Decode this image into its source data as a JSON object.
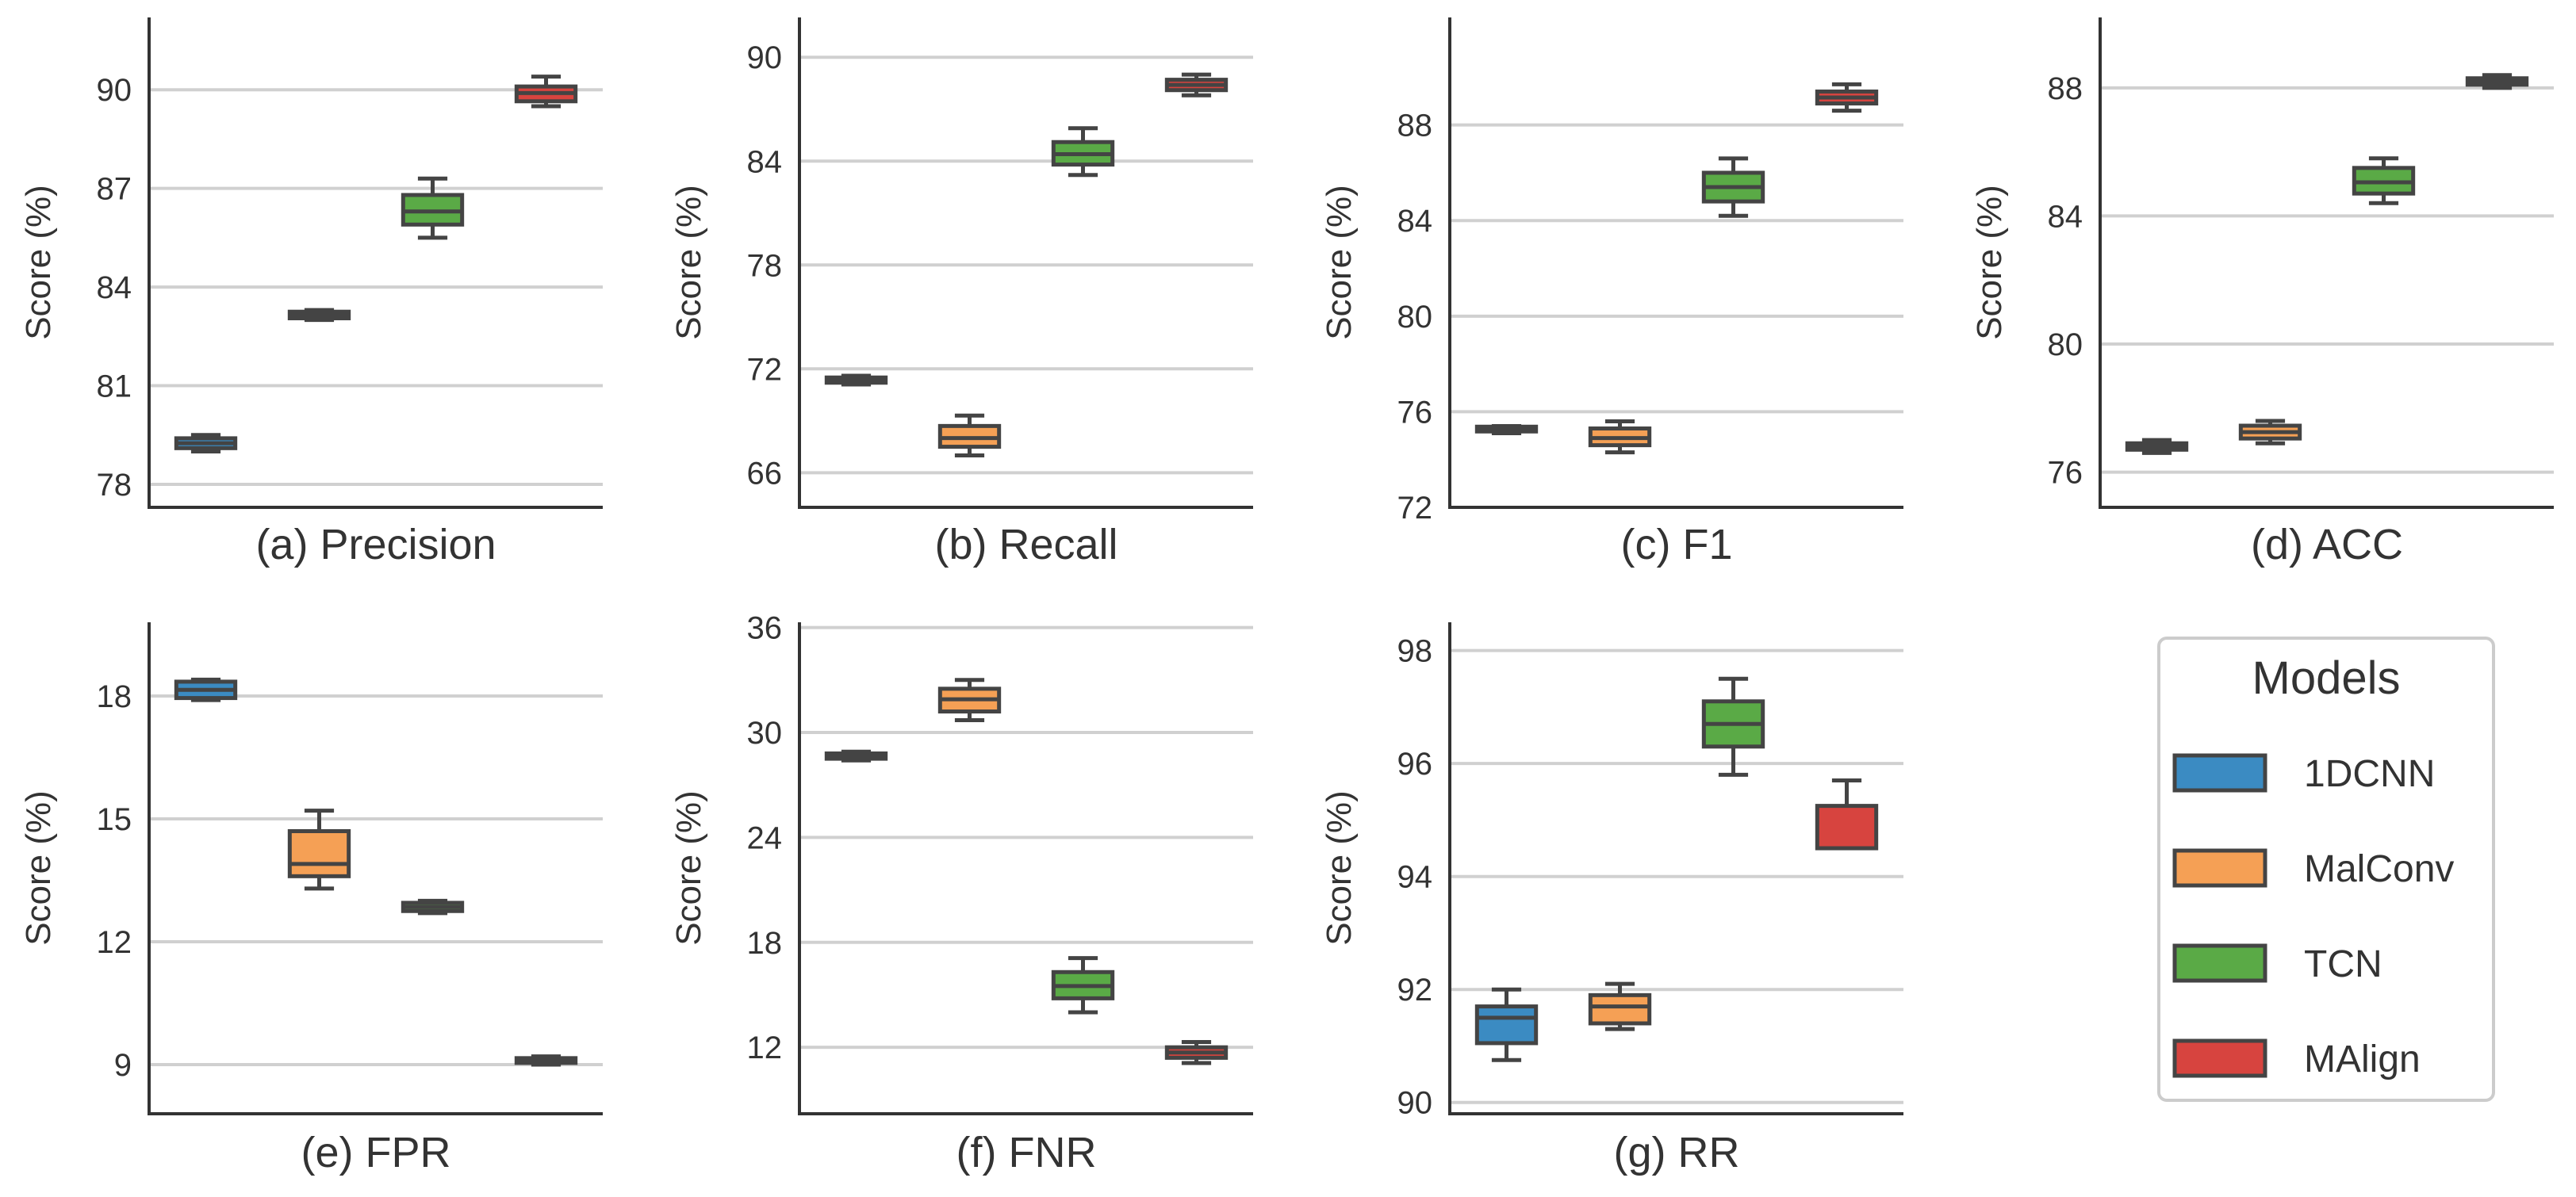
{
  "legend": {
    "title": "Models",
    "entries": [
      {
        "name": "1DCNN",
        "color": "#3b8bc2"
      },
      {
        "name": "MalConv",
        "color": "#f5a055"
      },
      {
        "name": "TCN",
        "color": "#5aaa46"
      },
      {
        "name": "MAlign",
        "color": "#d7443f"
      }
    ]
  },
  "colors": {
    "edge": "#444444",
    "grid": "#d0d0d0",
    "axis": "#333333"
  },
  "chart_data": [
    {
      "type": "box",
      "title": "(a) Precision",
      "ylabel": "Score (%)",
      "ylim": [
        77.3,
        92.2
      ],
      "yticks": [
        78,
        81,
        84,
        87,
        90
      ],
      "boxes": [
        {
          "model": "1DCNN",
          "min": 79.0,
          "q1": 79.1,
          "median": 79.25,
          "q3": 79.4,
          "max": 79.5
        },
        {
          "model": "MalConv",
          "min": 83.0,
          "q1": 83.05,
          "median": 83.15,
          "q3": 83.25,
          "max": 83.3
        },
        {
          "model": "TCN",
          "min": 85.5,
          "q1": 85.9,
          "median": 86.3,
          "q3": 86.8,
          "max": 87.3
        },
        {
          "model": "MAlign",
          "min": 89.5,
          "q1": 89.65,
          "median": 89.9,
          "q3": 90.1,
          "max": 90.4
        }
      ]
    },
    {
      "type": "box",
      "title": "(b) Recall",
      "ylabel": "Score (%)",
      "ylim": [
        64.0,
        92.3
      ],
      "yticks": [
        66,
        72,
        78,
        84,
        90
      ],
      "boxes": [
        {
          "model": "1DCNN",
          "min": 71.1,
          "q1": 71.2,
          "median": 71.35,
          "q3": 71.5,
          "max": 71.6
        },
        {
          "model": "MalConv",
          "min": 67.0,
          "q1": 67.5,
          "median": 68.0,
          "q3": 68.7,
          "max": 69.3
        },
        {
          "model": "TCN",
          "min": 83.2,
          "q1": 83.8,
          "median": 84.4,
          "q3": 85.1,
          "max": 85.9
        },
        {
          "model": "MAlign",
          "min": 87.8,
          "q1": 88.1,
          "median": 88.4,
          "q3": 88.7,
          "max": 89.0
        }
      ]
    },
    {
      "type": "box",
      "title": "(c) F1",
      "ylabel": "Score (%)",
      "ylim": [
        72.0,
        92.5
      ],
      "yticks": [
        72,
        76,
        80,
        84,
        88
      ],
      "boxes": [
        {
          "model": "1DCNN",
          "min": 75.1,
          "q1": 75.2,
          "median": 75.3,
          "q3": 75.35,
          "max": 75.4
        },
        {
          "model": "MalConv",
          "min": 74.3,
          "q1": 74.6,
          "median": 74.9,
          "q3": 75.3,
          "max": 75.6
        },
        {
          "model": "TCN",
          "min": 84.2,
          "q1": 84.8,
          "median": 85.4,
          "q3": 86.0,
          "max": 86.6
        },
        {
          "model": "MAlign",
          "min": 88.6,
          "q1": 88.9,
          "median": 89.15,
          "q3": 89.4,
          "max": 89.7
        }
      ]
    },
    {
      "type": "box",
      "title": "(d) ACC",
      "ylabel": "Score (%)",
      "ylim": [
        74.9,
        90.2
      ],
      "yticks": [
        76,
        80,
        84,
        88
      ],
      "boxes": [
        {
          "model": "1DCNN",
          "min": 76.6,
          "q1": 76.7,
          "median": 76.8,
          "q3": 76.9,
          "max": 77.0
        },
        {
          "model": "MalConv",
          "min": 76.9,
          "q1": 77.05,
          "median": 77.25,
          "q3": 77.45,
          "max": 77.6
        },
        {
          "model": "TCN",
          "min": 84.4,
          "q1": 84.7,
          "median": 85.05,
          "q3": 85.5,
          "max": 85.8
        },
        {
          "model": "MAlign",
          "min": 88.0,
          "q1": 88.1,
          "median": 88.2,
          "q3": 88.3,
          "max": 88.4
        }
      ]
    },
    {
      "type": "box",
      "title": "(e) FPR",
      "ylabel": "Score (%)",
      "ylim": [
        7.8,
        19.8
      ],
      "yticks": [
        9,
        12,
        15,
        18
      ],
      "boxes": [
        {
          "model": "1DCNN",
          "min": 17.9,
          "q1": 17.95,
          "median": 18.15,
          "q3": 18.35,
          "max": 18.4
        },
        {
          "model": "MalConv",
          "min": 13.3,
          "q1": 13.6,
          "median": 13.9,
          "q3": 14.7,
          "max": 15.2
        },
        {
          "model": "TCN",
          "min": 12.7,
          "q1": 12.75,
          "median": 12.85,
          "q3": 12.95,
          "max": 13.0
        },
        {
          "model": "MAlign",
          "min": 9.0,
          "q1": 9.05,
          "median": 9.1,
          "q3": 9.15,
          "max": 9.2
        }
      ]
    },
    {
      "type": "box",
      "title": "(f) FNR",
      "ylabel": "Score (%)",
      "ylim": [
        8.2,
        36.3
      ],
      "yticks": [
        12,
        18,
        24,
        30,
        36
      ],
      "boxes": [
        {
          "model": "1DCNN",
          "min": 28.4,
          "q1": 28.5,
          "median": 28.65,
          "q3": 28.8,
          "max": 28.9
        },
        {
          "model": "MalConv",
          "min": 30.7,
          "q1": 31.2,
          "median": 31.9,
          "q3": 32.5,
          "max": 33.0
        },
        {
          "model": "TCN",
          "min": 14.0,
          "q1": 14.8,
          "median": 15.5,
          "q3": 16.3,
          "max": 17.1
        },
        {
          "model": "MAlign",
          "min": 11.1,
          "q1": 11.4,
          "median": 11.7,
          "q3": 12.0,
          "max": 12.3
        }
      ]
    },
    {
      "type": "box",
      "title": "(g) RR",
      "ylabel": "Score (%)",
      "ylim": [
        89.8,
        98.5
      ],
      "yticks": [
        90,
        92,
        94,
        96,
        98
      ],
      "boxes": [
        {
          "model": "1DCNN",
          "min": 90.75,
          "q1": 91.05,
          "median": 91.5,
          "q3": 91.7,
          "max": 92.0
        },
        {
          "model": "MalConv",
          "min": 91.3,
          "q1": 91.4,
          "median": 91.7,
          "q3": 91.9,
          "max": 92.1
        },
        {
          "model": "TCN",
          "min": 95.8,
          "q1": 96.3,
          "median": 96.7,
          "q3": 97.1,
          "max": 97.5
        },
        {
          "model": "MAlign",
          "min": 94.5,
          "q1": 94.5,
          "median": 94.5,
          "q3": 95.25,
          "max": 95.7
        }
      ]
    }
  ]
}
